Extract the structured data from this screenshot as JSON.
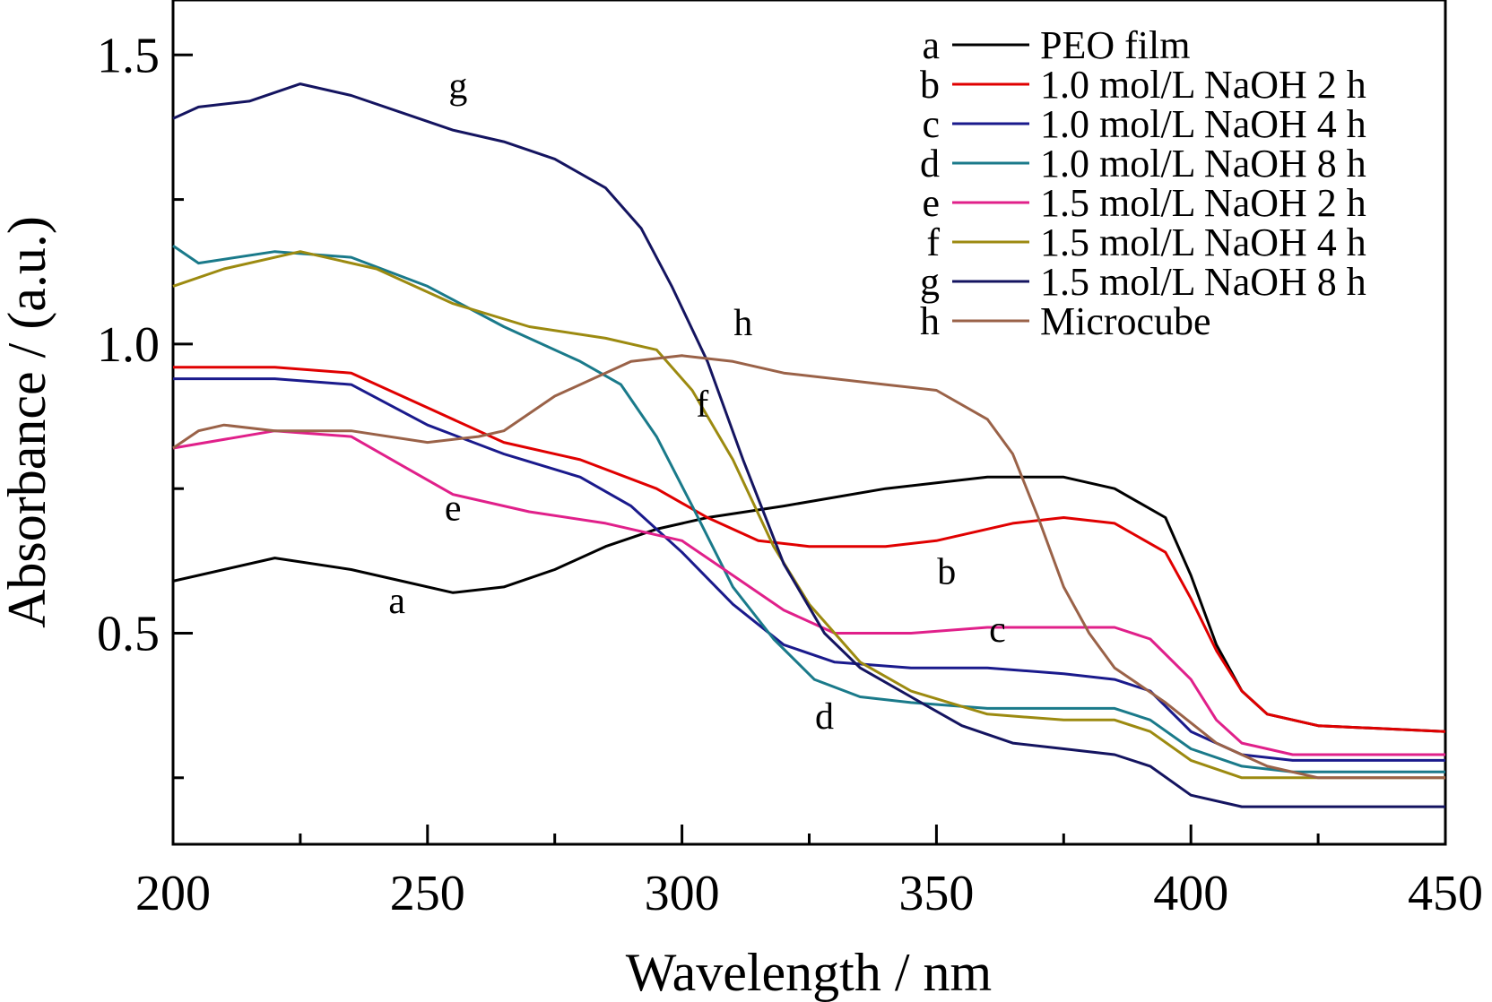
{
  "chart_data": {
    "type": "line",
    "xlabel": "Wavelength / nm",
    "ylabel": "Absorbance / (a.u.)",
    "xlim": [
      200,
      450
    ],
    "ylim": [
      0.135,
      1.595
    ],
    "xticks": [
      200,
      250,
      300,
      350,
      400,
      450
    ],
    "xtick_labels": [
      "200",
      "250",
      "300",
      "350",
      "400",
      "450"
    ],
    "yticks": [
      0.5,
      1.0,
      1.5
    ],
    "ytick_labels": [
      "0.5",
      "1.0",
      "1.5"
    ],
    "x_minor_step": 25,
    "y_minor_step": 0.25,
    "grid": false,
    "legend_position": "top-right",
    "series": [
      {
        "key": "a",
        "name": "PEO film",
        "color": "#000000",
        "x": [
          200,
          220,
          235,
          245,
          255,
          265,
          275,
          285,
          295,
          305,
          320,
          340,
          360,
          375,
          385,
          395,
          400,
          405,
          410,
          415,
          425,
          450
        ],
        "y": [
          0.59,
          0.63,
          0.61,
          0.59,
          0.57,
          0.58,
          0.61,
          0.65,
          0.68,
          0.7,
          0.72,
          0.75,
          0.77,
          0.77,
          0.75,
          0.7,
          0.6,
          0.48,
          0.4,
          0.36,
          0.34,
          0.33
        ]
      },
      {
        "key": "b",
        "name": "1.0 mol/L NaOH 2 h",
        "color": "#e00000",
        "x": [
          200,
          220,
          235,
          250,
          265,
          280,
          295,
          305,
          315,
          325,
          340,
          350,
          365,
          375,
          385,
          395,
          400,
          405,
          410,
          415,
          425,
          450
        ],
        "y": [
          0.96,
          0.96,
          0.95,
          0.89,
          0.83,
          0.8,
          0.75,
          0.7,
          0.66,
          0.65,
          0.65,
          0.66,
          0.69,
          0.7,
          0.69,
          0.64,
          0.56,
          0.47,
          0.4,
          0.36,
          0.34,
          0.33
        ]
      },
      {
        "key": "c",
        "name": "1.0 mol/L NaOH 4 h",
        "color": "#1a1a8c",
        "x": [
          200,
          220,
          235,
          250,
          265,
          280,
          290,
          300,
          310,
          320,
          330,
          345,
          360,
          375,
          385,
          392,
          400,
          410,
          420,
          450
        ],
        "y": [
          0.94,
          0.94,
          0.93,
          0.86,
          0.81,
          0.77,
          0.72,
          0.64,
          0.55,
          0.48,
          0.45,
          0.44,
          0.44,
          0.43,
          0.42,
          0.4,
          0.33,
          0.29,
          0.28,
          0.28
        ]
      },
      {
        "key": "d",
        "name": "1.0 mol/L NaOH 8 h",
        "color": "#1a7a8a",
        "x": [
          200,
          205,
          220,
          235,
          250,
          265,
          280,
          288,
          295,
          302,
          310,
          318,
          326,
          335,
          345,
          360,
          375,
          385,
          392,
          400,
          410,
          420,
          450
        ],
        "y": [
          1.17,
          1.14,
          1.16,
          1.15,
          1.1,
          1.03,
          0.97,
          0.93,
          0.84,
          0.72,
          0.58,
          0.49,
          0.42,
          0.39,
          0.38,
          0.37,
          0.37,
          0.37,
          0.35,
          0.3,
          0.27,
          0.26,
          0.26
        ]
      },
      {
        "key": "e",
        "name": "1.5 mol/L NaOH 2 h",
        "color": "#e0208a",
        "x": [
          200,
          220,
          235,
          245,
          255,
          270,
          285,
          300,
          310,
          320,
          330,
          345,
          360,
          375,
          385,
          392,
          400,
          405,
          410,
          420,
          450
        ],
        "y": [
          0.82,
          0.85,
          0.84,
          0.79,
          0.74,
          0.71,
          0.69,
          0.66,
          0.6,
          0.54,
          0.5,
          0.5,
          0.51,
          0.51,
          0.51,
          0.49,
          0.42,
          0.35,
          0.31,
          0.29,
          0.29
        ]
      },
      {
        "key": "f",
        "name": "1.5 mol/L NaOH 4 h",
        "color": "#9c8a10",
        "x": [
          200,
          210,
          225,
          240,
          255,
          270,
          285,
          295,
          302,
          310,
          318,
          325,
          335,
          345,
          360,
          375,
          385,
          392,
          400,
          410,
          420,
          450
        ],
        "y": [
          1.1,
          1.13,
          1.16,
          1.13,
          1.07,
          1.03,
          1.01,
          0.99,
          0.92,
          0.8,
          0.65,
          0.55,
          0.45,
          0.4,
          0.36,
          0.35,
          0.35,
          0.33,
          0.28,
          0.25,
          0.25,
          0.25
        ]
      },
      {
        "key": "g",
        "name": "1.5 mol/L NaOH 8 h",
        "color": "#141460",
        "x": [
          200,
          205,
          215,
          225,
          235,
          245,
          255,
          265,
          275,
          285,
          292,
          298,
          305,
          312,
          320,
          328,
          335,
          345,
          355,
          365,
          375,
          385,
          392,
          400,
          410,
          420,
          450
        ],
        "y": [
          1.39,
          1.41,
          1.42,
          1.45,
          1.43,
          1.4,
          1.37,
          1.35,
          1.32,
          1.27,
          1.2,
          1.1,
          0.97,
          0.8,
          0.62,
          0.5,
          0.44,
          0.39,
          0.34,
          0.31,
          0.3,
          0.29,
          0.27,
          0.22,
          0.2,
          0.2,
          0.2
        ]
      },
      {
        "key": "h",
        "name": "Microcube",
        "color": "#9a6248",
        "x": [
          200,
          205,
          210,
          220,
          235,
          250,
          260,
          265,
          275,
          290,
          300,
          310,
          320,
          340,
          350,
          360,
          365,
          370,
          375,
          380,
          385,
          395,
          405,
          415,
          425,
          450
        ],
        "y": [
          0.82,
          0.85,
          0.86,
          0.85,
          0.85,
          0.83,
          0.84,
          0.85,
          0.91,
          0.97,
          0.98,
          0.97,
          0.95,
          0.93,
          0.92,
          0.87,
          0.81,
          0.7,
          0.58,
          0.5,
          0.44,
          0.38,
          0.31,
          0.27,
          0.25,
          0.25
        ]
      }
    ],
    "curve_labels": [
      {
        "text": "a",
        "x": 244,
        "y": 0.535
      },
      {
        "text": "b",
        "x": 352,
        "y": 0.585
      },
      {
        "text": "c",
        "x": 362,
        "y": 0.485
      },
      {
        "text": "d",
        "x": 328,
        "y": 0.335
      },
      {
        "text": "e",
        "x": 255,
        "y": 0.695
      },
      {
        "text": "f",
        "x": 304,
        "y": 0.875
      },
      {
        "text": "g",
        "x": 256,
        "y": 1.425
      },
      {
        "text": "h",
        "x": 312,
        "y": 1.015
      }
    ]
  }
}
